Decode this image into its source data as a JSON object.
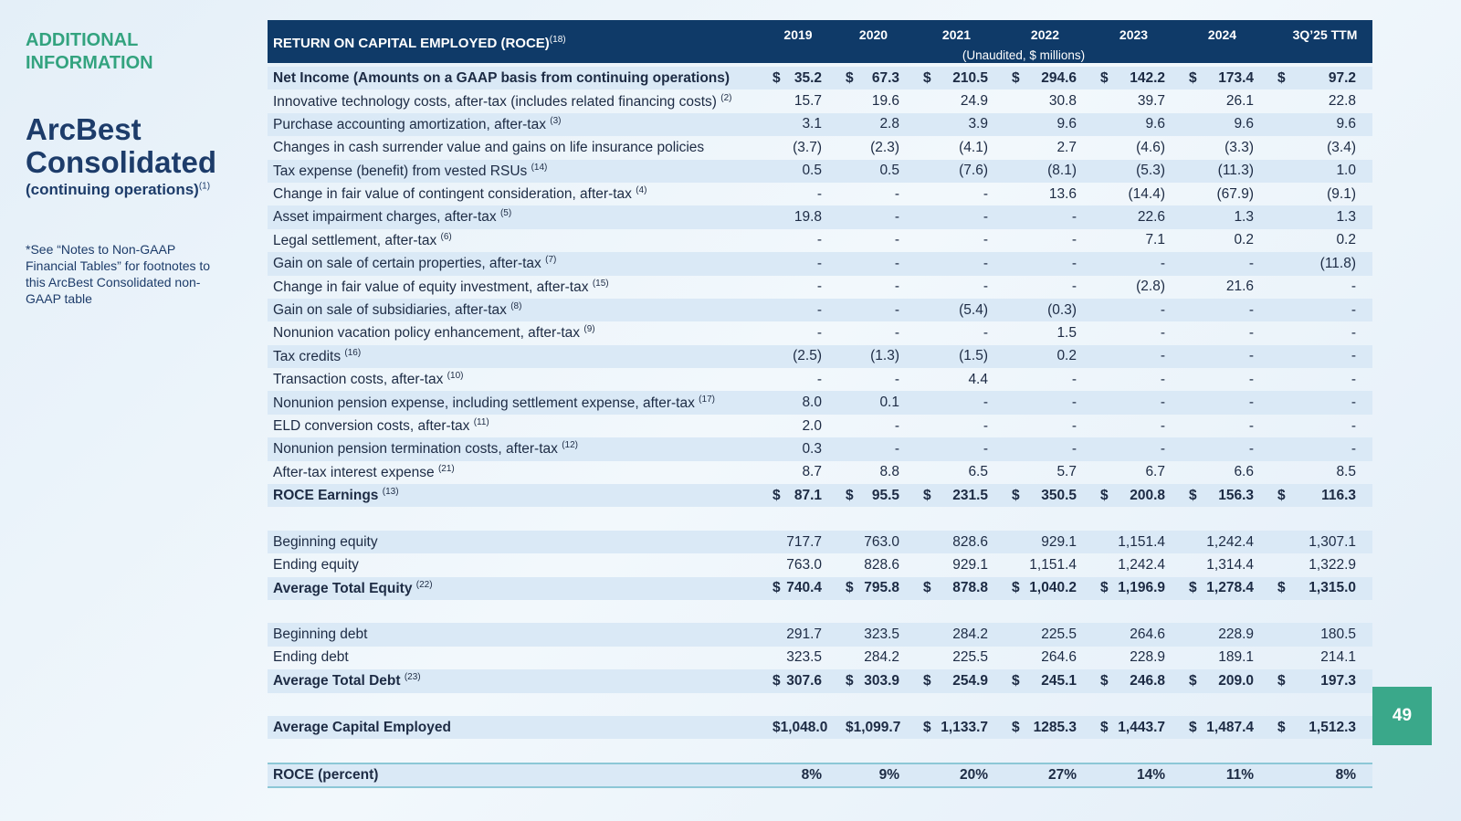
{
  "sidebar": {
    "heading": "ADDITIONAL INFORMATION",
    "title": "ArcBest Consolidated",
    "subtitle": "(continuing operations)",
    "subtitle_note": "(1)",
    "note": "*See “Notes to Non-GAAP Financial Tables” for footnotes to this ArcBest Consolidated non-GAAP table"
  },
  "page_number": "49",
  "table": {
    "title": "RETURN ON CAPITAL EMPLOYED (ROCE)",
    "title_note": "(18)",
    "columns": [
      "2019",
      "2020",
      "2021",
      "2022",
      "2023",
      "2024",
      "3Q’25 TTM"
    ],
    "unit": "(Unaudited, $ millions)",
    "sections": [
      [
        {
          "label": "Net Income (Amounts on a GAAP basis from continuing operations)",
          "currency": "$",
          "cells": [
            "35.2",
            "67.3",
            "210.5",
            "294.6",
            "142.2",
            "173.4",
            "97.2"
          ]
        },
        {
          "label": "Innovative technology costs, after-tax (includes related financing costs)",
          "note": "(2)",
          "cells": [
            "15.7",
            "19.6",
            "24.9",
            "30.8",
            "39.7",
            "26.1",
            "22.8"
          ]
        },
        {
          "label": "Purchase accounting amortization, after-tax",
          "note": "(3)",
          "cells": [
            "3.1",
            "2.8",
            "3.9",
            "9.6",
            "9.6",
            "9.6",
            "9.6"
          ]
        },
        {
          "label": "Changes in cash surrender value and gains on life insurance policies",
          "cells": [
            "(3.7)",
            "(2.3)",
            "(4.1)",
            "2.7",
            "(4.6)",
            "(3.3)",
            "(3.4)"
          ]
        },
        {
          "label": "Tax expense (benefit) from vested RSUs",
          "note": "(14)",
          "cells": [
            "0.5",
            "0.5",
            "(7.6)",
            "(8.1)",
            "(5.3)",
            "(11.3)",
            "1.0"
          ]
        },
        {
          "label": "Change in fair value of contingent consideration, after-tax",
          "note": "(4)",
          "cells": [
            "-",
            "-",
            "-",
            "13.6",
            "(14.4)",
            "(67.9)",
            "(9.1)"
          ]
        },
        {
          "label": "Asset impairment charges, after-tax",
          "note": "(5)",
          "cells": [
            "19.8",
            "-",
            "-",
            "-",
            "22.6",
            "1.3",
            "1.3"
          ]
        },
        {
          "label": "Legal settlement, after-tax",
          "note": "(6)",
          "cells": [
            "-",
            "-",
            "-",
            "-",
            "7.1",
            "0.2",
            "0.2"
          ]
        },
        {
          "label": "Gain on sale of certain properties, after-tax",
          "note": "(7)",
          "cells": [
            "-",
            "-",
            "-",
            "-",
            "-",
            "-",
            "(11.8)"
          ]
        },
        {
          "label": "Change in fair value of equity investment, after-tax",
          "note": "(15)",
          "cells": [
            "-",
            "-",
            "-",
            "-",
            "(2.8)",
            "21.6",
            "-"
          ]
        },
        {
          "label": "Gain on sale of subsidiaries, after-tax",
          "note": "(8)",
          "cells": [
            "-",
            "-",
            "(5.4)",
            "(0.3)",
            "-",
            "-",
            "-"
          ]
        },
        {
          "label": "Nonunion vacation policy enhancement, after-tax",
          "note": "(9)",
          "cells": [
            "-",
            "-",
            "-",
            "1.5",
            "-",
            "-",
            "-"
          ]
        },
        {
          "label": "Tax credits",
          "note": "(16)",
          "cells": [
            "(2.5)",
            "(1.3)",
            "(1.5)",
            "0.2",
            "-",
            "-",
            "-"
          ]
        },
        {
          "label": "Transaction costs, after-tax",
          "note": "(10)",
          "cells": [
            "-",
            "-",
            "4.4",
            "-",
            "-",
            "-",
            "-"
          ]
        },
        {
          "label": "Nonunion pension expense, including settlement expense, after-tax",
          "note": "(17)",
          "cells": [
            "8.0",
            "0.1",
            "-",
            "-",
            "-",
            "-",
            "-"
          ]
        },
        {
          "label": "ELD conversion costs, after-tax",
          "note": "(11)",
          "cells": [
            "2.0",
            "-",
            "-",
            "-",
            "-",
            "-",
            "-"
          ]
        },
        {
          "label": "Nonunion pension termination costs, after-tax",
          "note": "(12)",
          "cells": [
            "0.3",
            "-",
            "-",
            "-",
            "-",
            "-",
            "-"
          ]
        },
        {
          "label": "After-tax interest expense",
          "note": "(21)",
          "cells": [
            "8.7",
            "8.8",
            "6.5",
            "5.7",
            "6.7",
            "6.6",
            "8.5"
          ]
        },
        {
          "label": "ROCE Earnings",
          "note": "(13)",
          "currency": "$",
          "cells": [
            "87.1",
            "95.5",
            "231.5",
            "350.5",
            "200.8",
            "156.3",
            "116.3"
          ]
        }
      ],
      [
        {
          "label": "Beginning equity",
          "cells": [
            "717.7",
            "763.0",
            "828.6",
            "929.1",
            "1,151.4",
            "1,242.4",
            "1,307.1"
          ]
        },
        {
          "label": "Ending equity",
          "cells": [
            "763.0",
            "828.6",
            "929.1",
            "1,151.4",
            "1,242.4",
            "1,314.4",
            "1,322.9"
          ]
        },
        {
          "label": "Average Total Equity",
          "note": "(22)",
          "currency": "$",
          "cells": [
            "740.4",
            "795.8",
            "878.8",
            "1,040.2",
            "1,196.9",
            "1,278.4",
            "1,315.0"
          ]
        }
      ],
      [
        {
          "label": "Beginning debt",
          "cells": [
            "291.7",
            "323.5",
            "284.2",
            "225.5",
            "264.6",
            "228.9",
            "180.5"
          ]
        },
        {
          "label": "Ending debt",
          "cells": [
            "323.5",
            "284.2",
            "225.5",
            "264.6",
            "228.9",
            "189.1",
            "214.1"
          ]
        },
        {
          "label": "Average Total Debt",
          "note": "(23)",
          "currency": "$",
          "cells": [
            "307.6",
            "303.9",
            "254.9",
            "245.1",
            "246.8",
            "209.0",
            "197.3"
          ]
        }
      ],
      [
        {
          "label": "Average Capital Employed",
          "currency": "$",
          "cells": [
            "1,048.0",
            "1,099.7",
            "1,133.7",
            "1285.3",
            "1,443.7",
            "1,487.4",
            "1,512.3"
          ]
        }
      ],
      [
        {
          "label": "ROCE (percent)",
          "cells": [
            "8%",
            "9%",
            "20%",
            "27%",
            "14%",
            "11%",
            "8%"
          ]
        }
      ]
    ]
  }
}
